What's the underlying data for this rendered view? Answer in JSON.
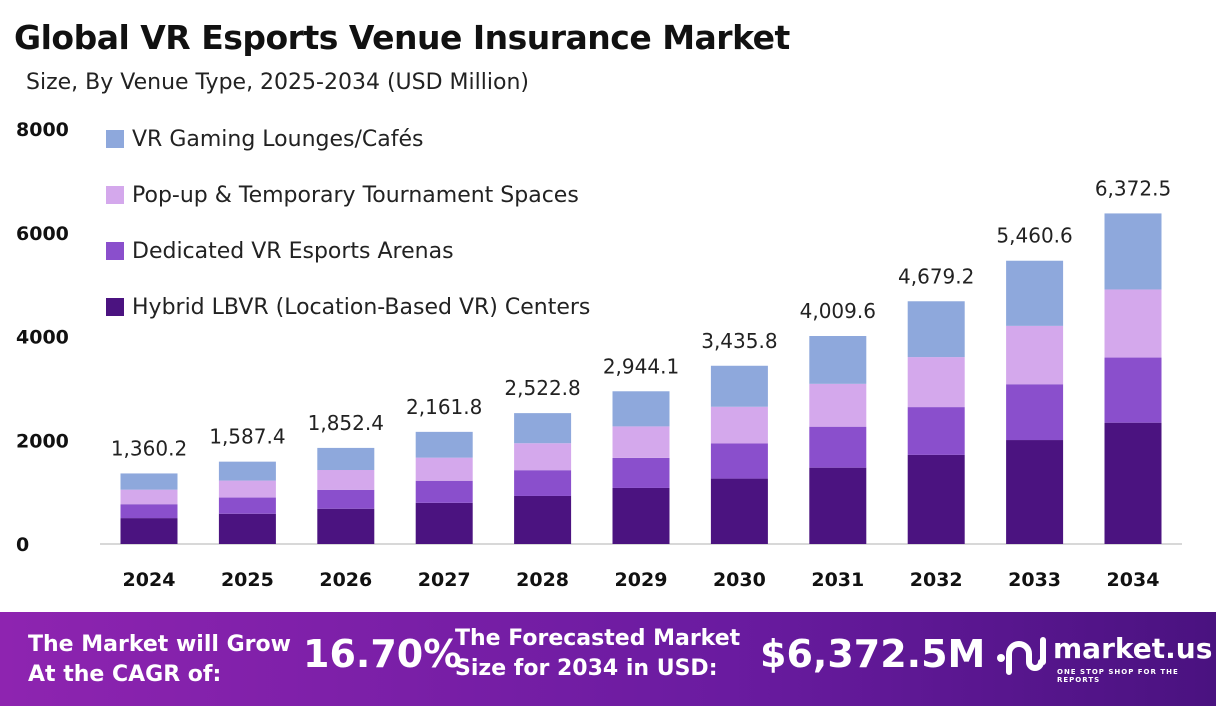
{
  "chart_data": {
    "type": "bar",
    "stacked": true,
    "title": "Global VR Esports Venue Insurance Market",
    "subtitle": "Size, By Venue Type, 2025-2034 (USD Million)",
    "categories": [
      "2024",
      "2025",
      "2026",
      "2027",
      "2028",
      "2029",
      "2030",
      "2031",
      "2032",
      "2033",
      "2034"
    ],
    "ylim": [
      0,
      8000
    ],
    "yticks": [
      "0",
      "2000",
      "4000",
      "6000",
      "8000"
    ],
    "grid": false,
    "legend_position": "top-left",
    "totals": [
      "1,360.2",
      "1,587.4",
      "1,852.4",
      "2,161.8",
      "2,522.8",
      "2,944.1",
      "3,435.8",
      "4,009.6",
      "4,679.2",
      "5,460.6",
      "6,372.5"
    ],
    "series": [
      {
        "name": "Hybrid LBVR (Location-Based VR) Centers",
        "color": "#4b1380",
        "values": [
          499.2,
          582.6,
          679.8,
          793.4,
          925.9,
          1080.5,
          1260.9,
          1471.5,
          1717.3,
          2004.0,
          2338.7
        ]
      },
      {
        "name": "Dedicated VR Esports Arenas",
        "color": "#8a4fcc",
        "values": [
          268.0,
          312.7,
          364.9,
          425.9,
          497.0,
          580.0,
          676.9,
          789.9,
          921.8,
          1075.7,
          1255.4
        ]
      },
      {
        "name": "Pop-up & Temporary Tournament Spaces",
        "color": "#d4a8ec",
        "values": [
          280.2,
          327.0,
          381.6,
          445.3,
          519.7,
          606.5,
          707.8,
          826.0,
          963.9,
          1124.9,
          1312.7
        ]
      },
      {
        "name": "VR Gaming Lounges/Cafés",
        "color": "#8ea8dc",
        "values": [
          312.8,
          365.1,
          426.1,
          497.2,
          580.2,
          677.1,
          790.2,
          922.2,
          1076.2,
          1256.0,
          1465.7
        ]
      }
    ]
  },
  "footer": {
    "cagr_label_1": "The Market will Grow",
    "cagr_label_2": "At the CAGR of:",
    "cagr_value": "16.70%",
    "forecast_label_1": "The Forecasted Market",
    "forecast_label_2": "Size for 2034 in USD:",
    "forecast_value": "$6,372.5M",
    "logo_name": "market.us",
    "logo_tagline": "ONE STOP SHOP FOR THE REPORTS"
  }
}
